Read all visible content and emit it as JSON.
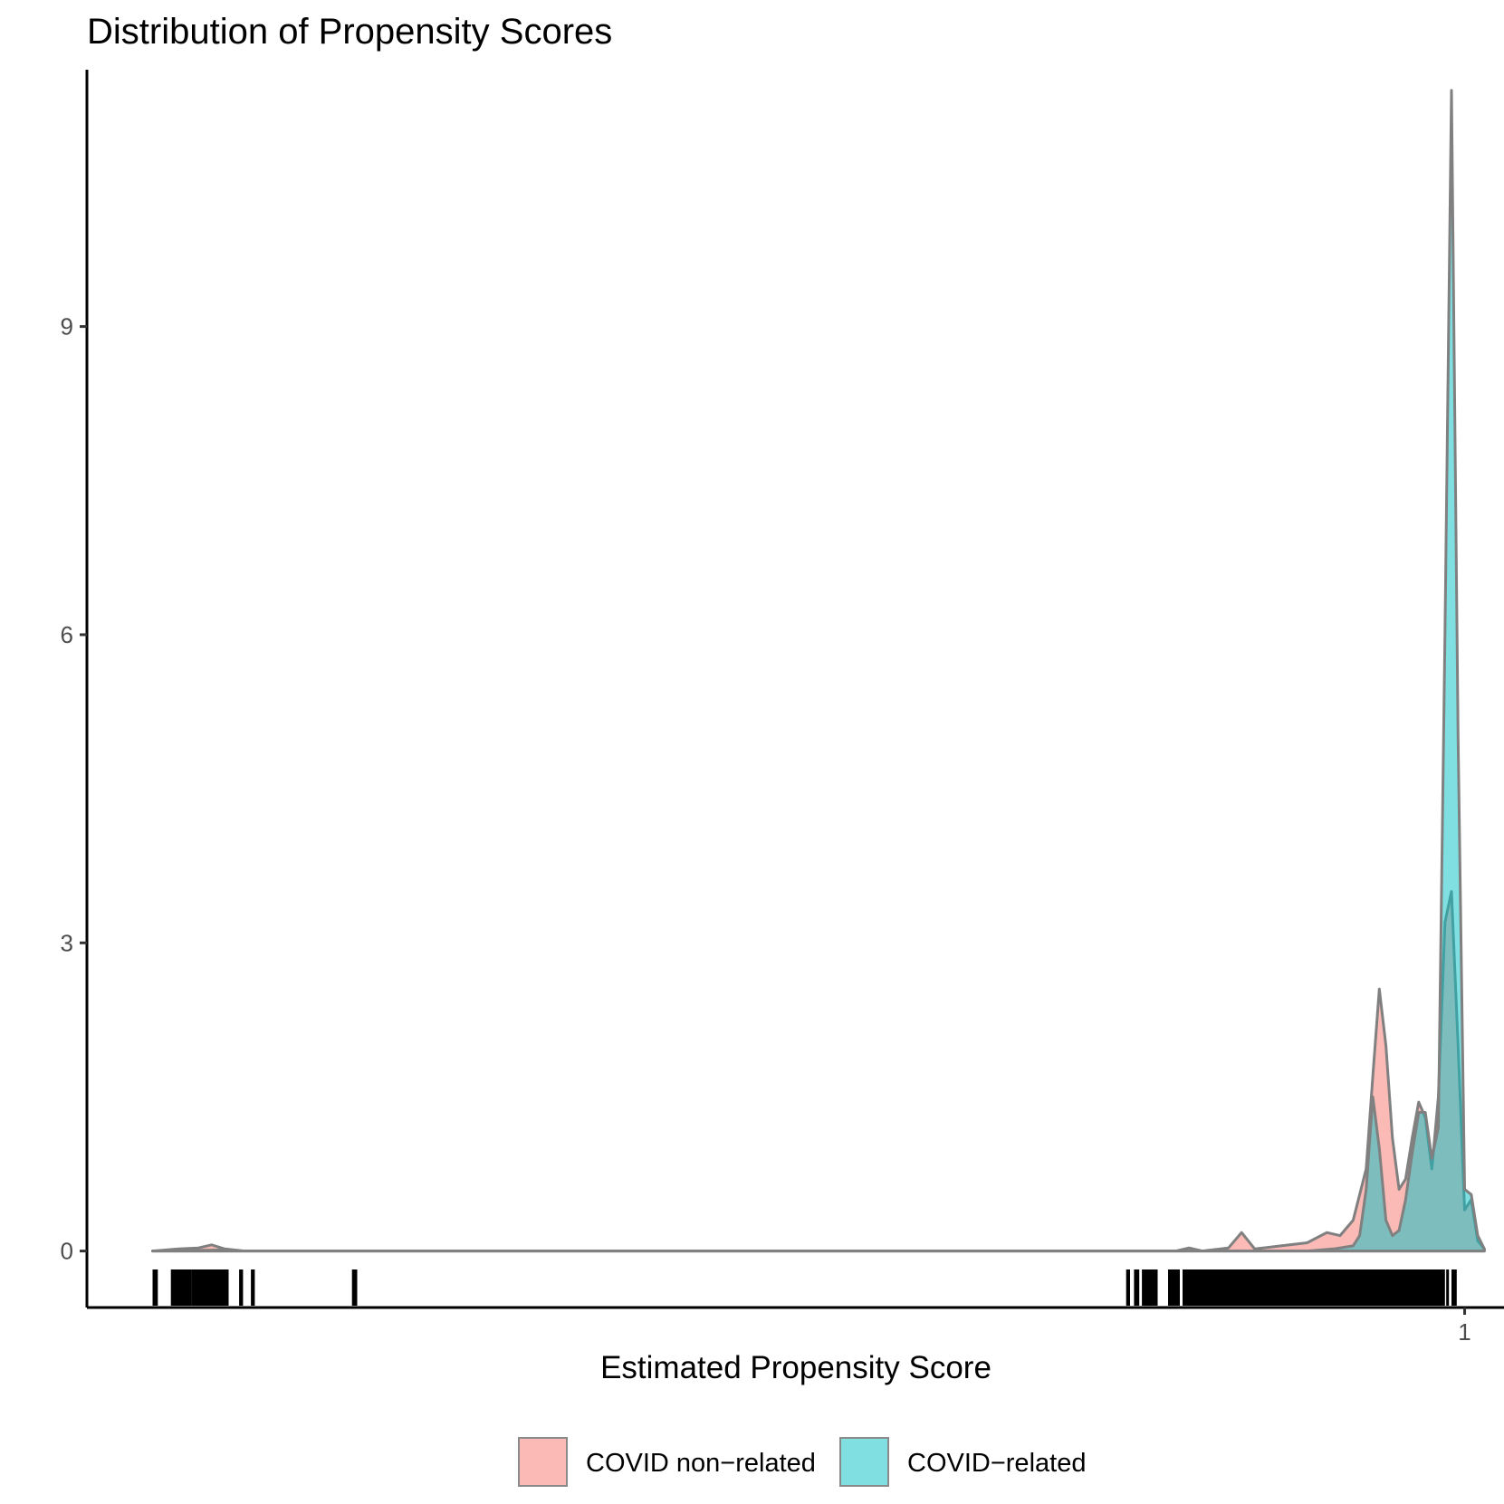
{
  "chart_data": {
    "type": "area",
    "title": "Distribution of Propensity Scores",
    "xlabel": "Estimated Propensity Score",
    "ylabel": "",
    "xlim": [
      -0.05,
      1.03
    ],
    "ylim": [
      -0.55,
      11.5
    ],
    "x_ticks": [
      {
        "value": 1,
        "label": "1"
      }
    ],
    "y_ticks": [
      {
        "value": 0,
        "label": "0"
      },
      {
        "value": 3,
        "label": "3"
      },
      {
        "value": 6,
        "label": "6"
      },
      {
        "value": 9,
        "label": "9"
      }
    ],
    "grid": false,
    "legend_position": "bottom",
    "series": [
      {
        "name": "COVID non−related",
        "color": "#F8766D",
        "points": [
          [
            0.0,
            0.0
          ],
          [
            0.02,
            0.02
          ],
          [
            0.035,
            0.03
          ],
          [
            0.045,
            0.06
          ],
          [
            0.055,
            0.02
          ],
          [
            0.07,
            0.0
          ],
          [
            0.78,
            0.0
          ],
          [
            0.79,
            0.03
          ],
          [
            0.8,
            0.0
          ],
          [
            0.82,
            0.03
          ],
          [
            0.83,
            0.18
          ],
          [
            0.84,
            0.02
          ],
          [
            0.86,
            0.05
          ],
          [
            0.88,
            0.08
          ],
          [
            0.895,
            0.18
          ],
          [
            0.905,
            0.15
          ],
          [
            0.915,
            0.3
          ],
          [
            0.925,
            0.8
          ],
          [
            0.93,
            1.7
          ],
          [
            0.935,
            2.55
          ],
          [
            0.94,
            2.0
          ],
          [
            0.945,
            1.1
          ],
          [
            0.95,
            0.6
          ],
          [
            0.955,
            0.7
          ],
          [
            0.96,
            1.1
          ],
          [
            0.965,
            1.45
          ],
          [
            0.97,
            1.3
          ],
          [
            0.975,
            0.8
          ],
          [
            0.98,
            1.5
          ],
          [
            0.985,
            3.2
          ],
          [
            0.99,
            3.5
          ],
          [
            0.995,
            2.0
          ],
          [
            1.0,
            0.4
          ],
          [
            1.005,
            0.5
          ],
          [
            1.01,
            0.1
          ],
          [
            1.015,
            0.02
          ]
        ]
      },
      {
        "name": "COVID−related",
        "color": "#00BFC4",
        "points": [
          [
            0.0,
            0.0
          ],
          [
            0.05,
            0.01
          ],
          [
            0.07,
            0.0
          ],
          [
            0.88,
            0.0
          ],
          [
            0.9,
            0.02
          ],
          [
            0.915,
            0.05
          ],
          [
            0.92,
            0.15
          ],
          [
            0.925,
            0.6
          ],
          [
            0.93,
            1.5
          ],
          [
            0.935,
            1.0
          ],
          [
            0.94,
            0.3
          ],
          [
            0.945,
            0.15
          ],
          [
            0.95,
            0.2
          ],
          [
            0.955,
            0.5
          ],
          [
            0.96,
            0.95
          ],
          [
            0.965,
            1.35
          ],
          [
            0.97,
            1.35
          ],
          [
            0.975,
            0.9
          ],
          [
            0.98,
            1.2
          ],
          [
            0.985,
            6.0
          ],
          [
            0.99,
            11.3
          ],
          [
            0.995,
            5.0
          ],
          [
            1.0,
            0.6
          ],
          [
            1.005,
            0.55
          ],
          [
            1.01,
            0.15
          ],
          [
            1.015,
            0.02
          ]
        ]
      }
    ],
    "rug_ranges": [
      [
        0.0,
        0.004
      ],
      [
        0.014,
        0.03
      ],
      [
        0.03,
        0.058
      ],
      [
        0.066,
        0.069
      ],
      [
        0.075,
        0.078
      ],
      [
        0.152,
        0.156
      ],
      [
        0.742,
        0.745
      ],
      [
        0.748,
        0.752
      ],
      [
        0.754,
        0.766
      ],
      [
        0.774,
        0.783
      ],
      [
        0.785,
        0.985
      ],
      [
        0.986,
        0.988
      ],
      [
        0.99,
        0.994
      ]
    ]
  }
}
